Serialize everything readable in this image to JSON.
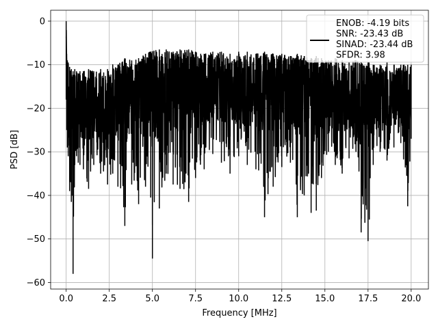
{
  "chart_data": {
    "type": "line",
    "xlabel": "Frequency [MHz]",
    "ylabel": "PSD [dB]",
    "xlim": [
      -0.9,
      21.0
    ],
    "ylim": [
      -61.5,
      2.5
    ],
    "xticks": [
      0.0,
      2.5,
      5.0,
      7.5,
      10.0,
      12.5,
      15.0,
      17.5,
      20.0
    ],
    "xtick_labels": [
      "0.0",
      "2.5",
      "5.0",
      "7.5",
      "10.0",
      "12.5",
      "15.0",
      "17.5",
      "20.0"
    ],
    "yticks": [
      0,
      -10,
      -20,
      -30,
      -40,
      -50,
      -60
    ],
    "ytick_labels": [
      "0",
      "−10",
      "−20",
      "−30",
      "−40",
      "−50",
      "−60"
    ],
    "grid": true,
    "legend_position": "top-right",
    "series_color": "#000000",
    "series": [
      {
        "label_lines": [
          "ENOB: -4.19 bits",
          "SNR: -23.43 dB",
          "SINAD: -23.44 dB",
          "SFDR: 3.98"
        ],
        "x": [
          0.0,
          0.03,
          0.07,
          0.12,
          0.2,
          0.3,
          0.4,
          0.5,
          0.6,
          0.7,
          0.8,
          1.0,
          1.3,
          1.6,
          2.0,
          2.4,
          2.7,
          3.0,
          3.4,
          3.8,
          4.2,
          4.6,
          4.9,
          5.0,
          5.4,
          5.8,
          6.2,
          6.6,
          7.1,
          7.5,
          8.0,
          8.5,
          9.0,
          9.5,
          10.0,
          10.5,
          11.0,
          11.5,
          12.0,
          12.5,
          13.0,
          13.4,
          13.8,
          14.2,
          14.5,
          14.8,
          15.2,
          15.6,
          16.0,
          16.4,
          16.8,
          17.1,
          17.5,
          17.8,
          18.2,
          18.6,
          19.0,
          19.4,
          19.8,
          20.0
        ],
        "upper": [
          0.0,
          -7.5,
          -9.0,
          -9.5,
          -10.5,
          -11.0,
          -11.5,
          -11.0,
          -11.5,
          -12.0,
          -11.5,
          -11.5,
          -11.0,
          -11.5,
          -11.0,
          -11.0,
          -10.0,
          -10.0,
          -8.5,
          -9.0,
          -8.5,
          -7.5,
          -7.0,
          -7.0,
          -6.5,
          -6.5,
          -7.0,
          -6.5,
          -6.5,
          -7.0,
          -7.5,
          -7.0,
          -7.0,
          -7.5,
          -7.0,
          -7.0,
          -7.5,
          -7.0,
          -7.5,
          -7.5,
          -8.0,
          -7.5,
          -8.0,
          -8.5,
          -8.0,
          -8.5,
          -9.0,
          -8.5,
          -9.0,
          -9.5,
          -9.0,
          -9.5,
          -9.5,
          -10.0,
          -10.0,
          -9.5,
          -10.0,
          -10.0,
          -10.0,
          -10.0
        ],
        "lower": [
          -18.0,
          -25.0,
          -29.0,
          -31.0,
          -39.0,
          -41.5,
          -58.0,
          -33.0,
          -31.0,
          -32.5,
          -33.0,
          -34.0,
          -38.5,
          -33.0,
          -35.0,
          -37.5,
          -35.0,
          -38.0,
          -47.0,
          -37.5,
          -42.0,
          -38.0,
          -40.5,
          -54.5,
          -43.0,
          -35.0,
          -37.5,
          -38.5,
          -41.5,
          -36.0,
          -34.0,
          -30.5,
          -32.5,
          -35.0,
          -31.0,
          -33.0,
          -34.0,
          -45.0,
          -38.0,
          -33.5,
          -32.5,
          -45.0,
          -40.0,
          -44.0,
          -43.5,
          -36.0,
          -30.0,
          -33.0,
          -35.0,
          -31.5,
          -30.0,
          -48.5,
          -50.5,
          -33.0,
          -30.0,
          -32.0,
          -29.0,
          -28.0,
          -42.5,
          -27.0
        ],
        "mid": [
          -2.0,
          -12.0,
          -18.0,
          -20.0,
          -20.5,
          -21.0,
          -21.5,
          -21.0,
          -21.5,
          -21.0,
          -21.0,
          -21.0,
          -20.5,
          -21.0,
          -20.5,
          -20.0,
          -20.0,
          -19.5,
          -19.0,
          -18.5,
          -18.5,
          -18.0,
          -17.5,
          -17.5,
          -17.0,
          -17.0,
          -17.0,
          -16.5,
          -17.0,
          -16.5,
          -17.0,
          -16.5,
          -17.0,
          -17.0,
          -17.0,
          -17.0,
          -17.0,
          -17.0,
          -17.5,
          -17.5,
          -17.5,
          -17.5,
          -18.0,
          -18.0,
          -18.0,
          -18.0,
          -18.5,
          -18.5,
          -18.5,
          -18.5,
          -19.0,
          -19.0,
          -19.0,
          -19.0,
          -19.0,
          -19.0,
          -19.0,
          -19.5,
          -19.5,
          -19.5
        ]
      }
    ]
  }
}
